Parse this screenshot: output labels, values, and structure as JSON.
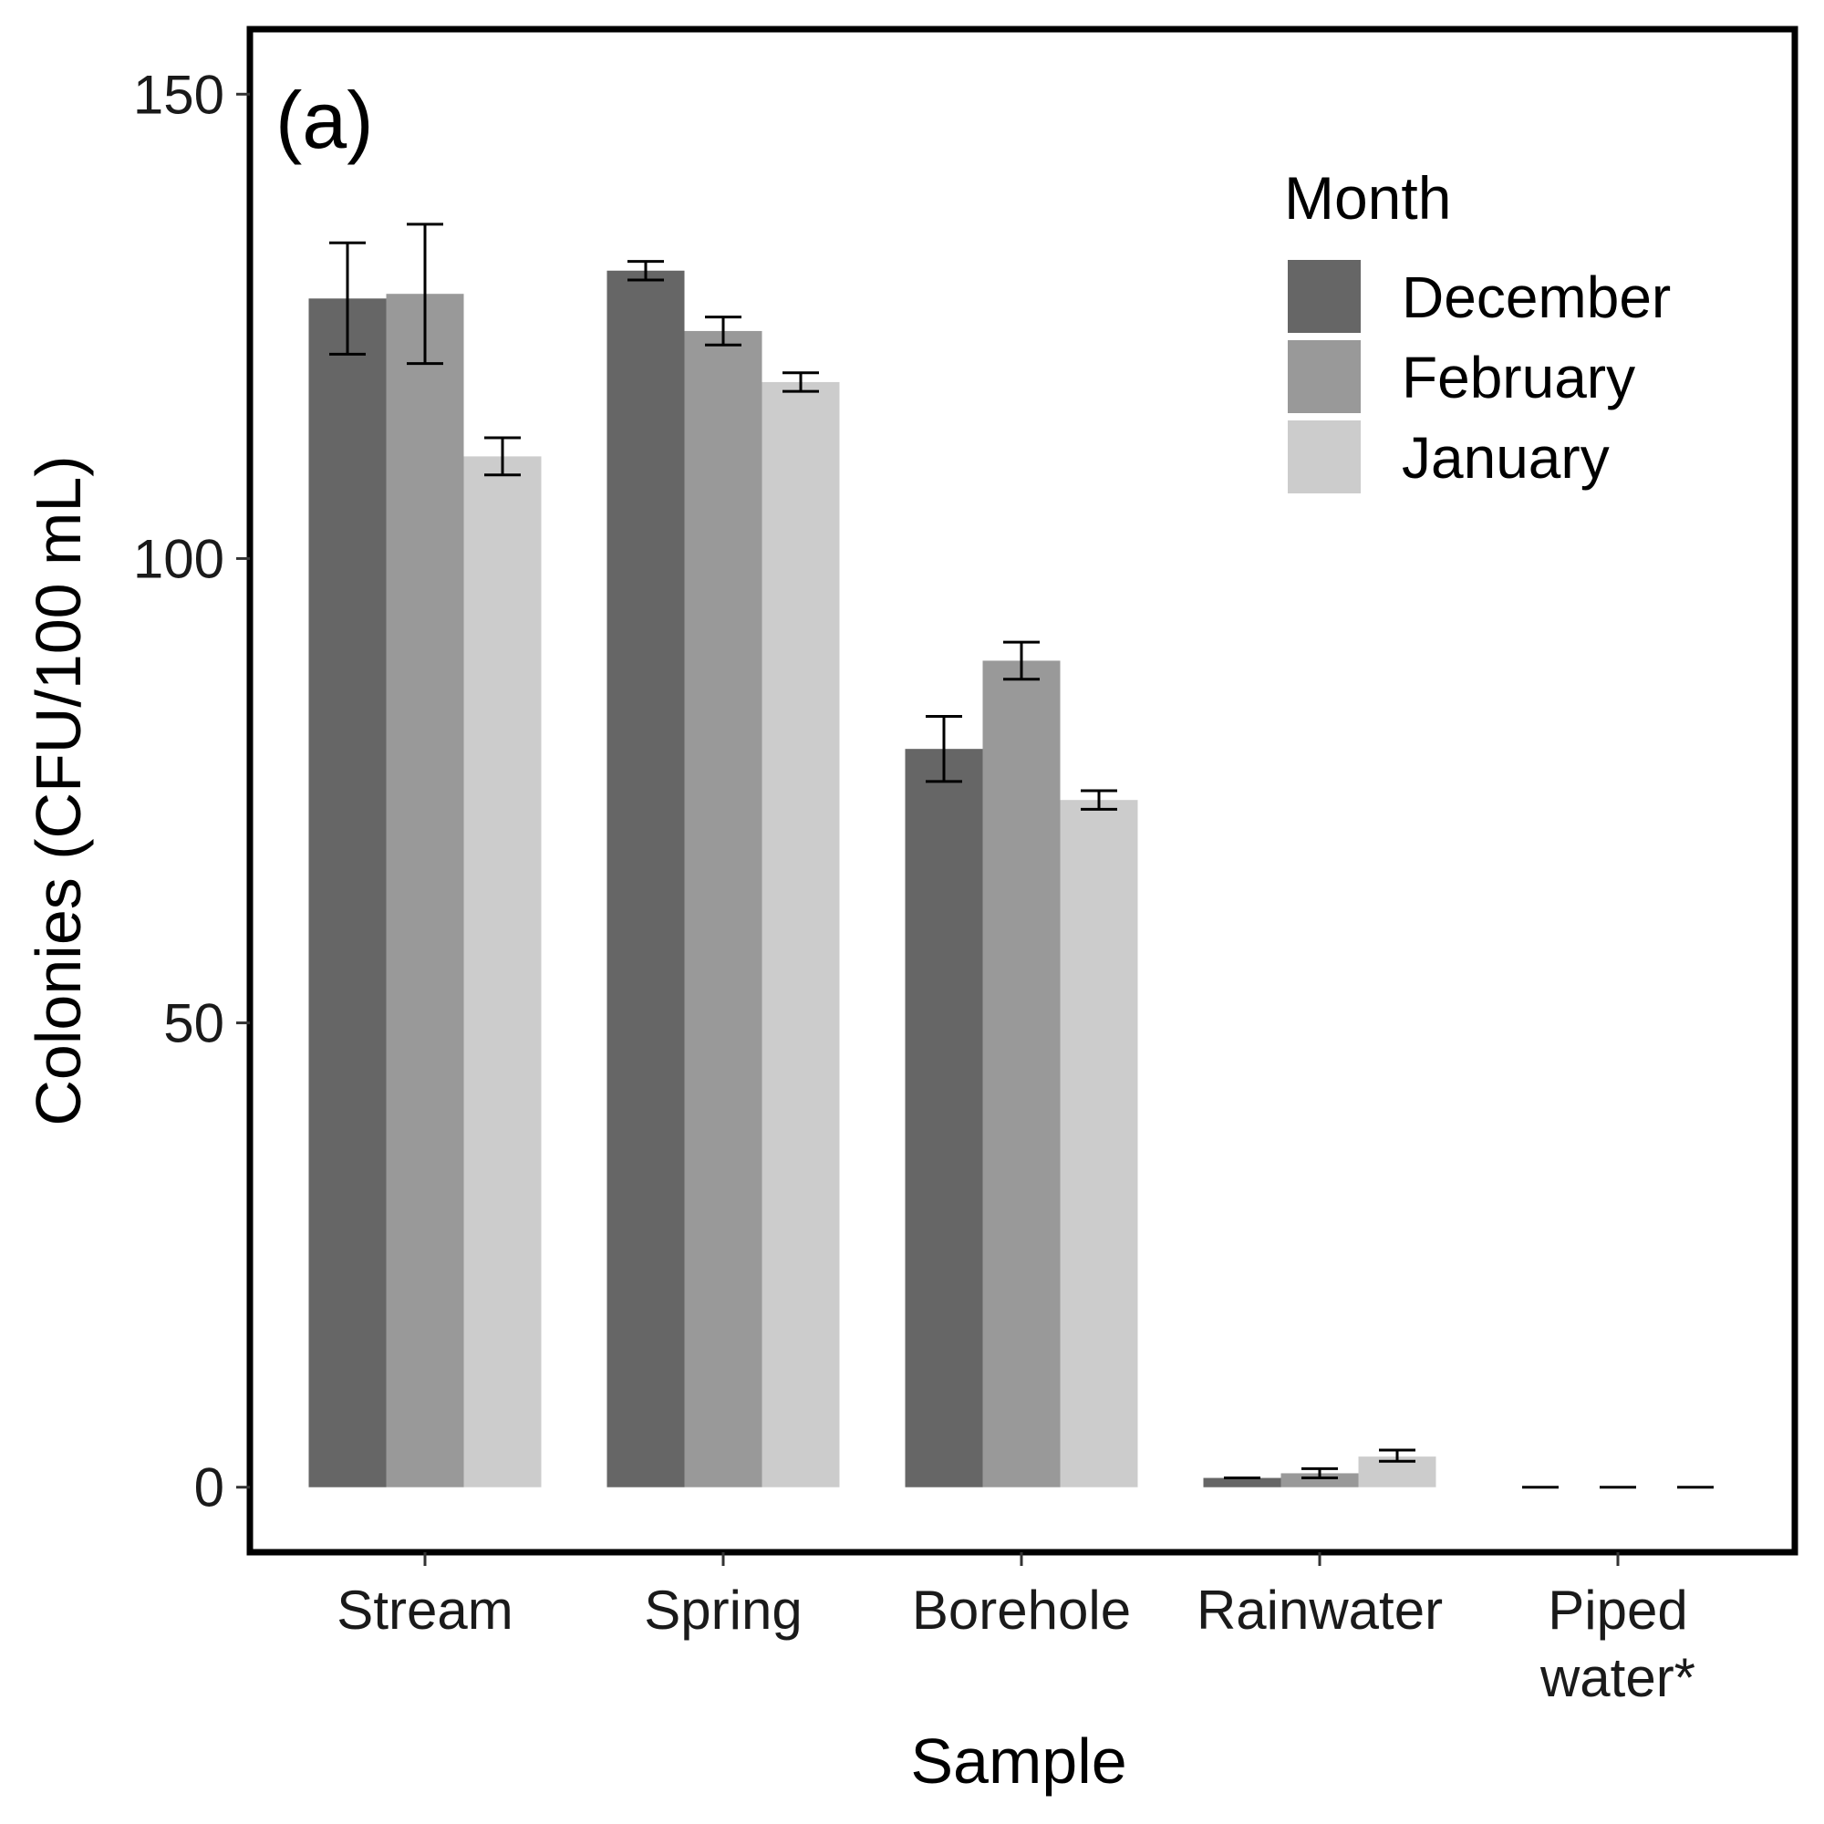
{
  "chart_data": {
    "type": "bar",
    "panel_label": "(a)",
    "xlabel": "Sample",
    "ylabel": "Colonies (CFU/100 mL)",
    "ylim": [
      -7,
      157
    ],
    "yticks": [
      0,
      50,
      100,
      150
    ],
    "categories": [
      [
        "Stream"
      ],
      [
        "Spring"
      ],
      [
        "Borehole"
      ],
      [
        "Rainwater"
      ],
      [
        "Piped",
        "water*"
      ]
    ],
    "legend": {
      "title": "Month",
      "position": "top-right"
    },
    "grid": false,
    "series": [
      {
        "name": "December",
        "color": "#666666",
        "values": [
          128,
          131,
          79.5,
          1,
          0
        ],
        "error": [
          [
            122,
            134
          ],
          [
            130,
            132
          ],
          [
            76,
            83
          ],
          [
            1,
            1
          ],
          [
            0,
            0
          ]
        ]
      },
      {
        "name": "February",
        "color": "#999999",
        "values": [
          128.5,
          124.5,
          89,
          1.5,
          0
        ],
        "error": [
          [
            121,
            136
          ],
          [
            123,
            126
          ],
          [
            87,
            91
          ],
          [
            1,
            2
          ],
          [
            0,
            0
          ]
        ]
      },
      {
        "name": "January",
        "color": "#cccccc",
        "values": [
          111,
          119,
          74,
          3.3,
          0
        ],
        "error": [
          [
            109,
            113
          ],
          [
            118,
            120
          ],
          [
            73,
            75
          ],
          [
            2.8,
            4
          ],
          [
            0,
            0
          ]
        ]
      }
    ]
  }
}
